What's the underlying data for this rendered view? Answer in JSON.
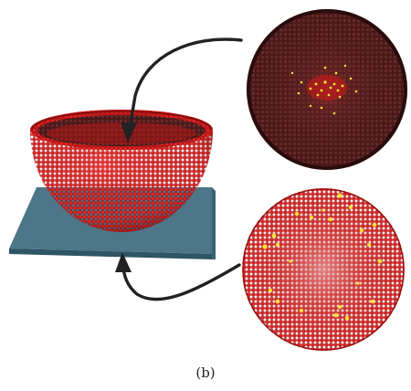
{
  "figure": {
    "caption": "(b)",
    "colors": {
      "hemisphere": "#d81e1e",
      "hemisphere_dark": "#8f0b0b",
      "plate": "#4a7485",
      "plate_edge": "#2e5565",
      "arrow": "#222222",
      "marker": "#f2e634",
      "top_view_bg": "#5a2222",
      "bottom_view_bg": "#c91e1e"
    },
    "icons": [
      "curved-arrow-icon",
      "curved-arrow-icon"
    ]
  }
}
